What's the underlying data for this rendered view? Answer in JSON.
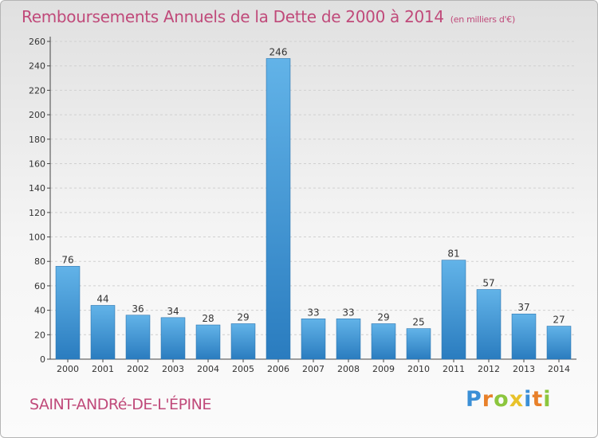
{
  "title": "Remboursements Annuels de la Dette de 2000 à 2014",
  "subtitle": "(en milliers d'€)",
  "commune": "SAINT-ANDRé-DE-L'ÉPINE",
  "logo": {
    "letters": [
      {
        "char": "P",
        "color": "#3b8fd6"
      },
      {
        "char": "r",
        "color": "#e8802a"
      },
      {
        "char": "o",
        "color": "#8cc63e"
      },
      {
        "char": "x",
        "color": "#e8c22a"
      },
      {
        "char": "i",
        "color": "#3b8fd6"
      },
      {
        "char": "t",
        "color": "#e8802a"
      },
      {
        "char": "i",
        "color": "#8cc63e"
      }
    ]
  },
  "colors": {
    "accent": "#c04a7a",
    "bar_top": "#62b3e8",
    "bar_bottom": "#2a7cbf",
    "grid": "#d0d0d0"
  },
  "chart_data": {
    "type": "bar",
    "title": "Remboursements Annuels de la Dette de 2000 à 2014",
    "xlabel": "",
    "ylabel": "",
    "categories": [
      "2000",
      "2001",
      "2002",
      "2003",
      "2004",
      "2005",
      "2006",
      "2007",
      "2008",
      "2009",
      "2010",
      "2011",
      "2012",
      "2013",
      "2014"
    ],
    "values": [
      76,
      44,
      36,
      34,
      28,
      29,
      246,
      33,
      33,
      29,
      25,
      81,
      57,
      37,
      27
    ],
    "ylim": [
      0,
      260
    ],
    "yticks": [
      0,
      20,
      40,
      60,
      80,
      100,
      120,
      140,
      160,
      180,
      200,
      220,
      240,
      260
    ],
    "grid": true,
    "data_labels": true
  }
}
